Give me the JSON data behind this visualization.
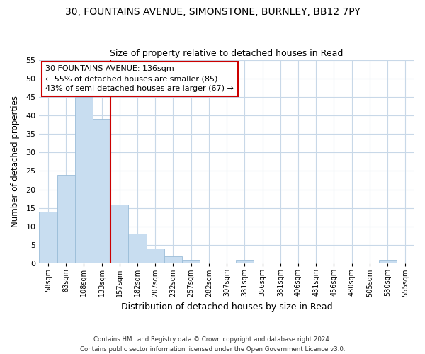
{
  "title1": "30, FOUNTAINS AVENUE, SIMONSTONE, BURNLEY, BB12 7PY",
  "title2": "Size of property relative to detached houses in Read",
  "xlabel": "Distribution of detached houses by size in Read",
  "ylabel": "Number of detached properties",
  "bin_labels": [
    "58sqm",
    "83sqm",
    "108sqm",
    "133sqm",
    "157sqm",
    "182sqm",
    "207sqm",
    "232sqm",
    "257sqm",
    "282sqm",
    "307sqm",
    "331sqm",
    "356sqm",
    "381sqm",
    "406sqm",
    "431sqm",
    "456sqm",
    "480sqm",
    "505sqm",
    "530sqm",
    "555sqm"
  ],
  "bar_values": [
    14,
    24,
    45,
    39,
    16,
    8,
    4,
    2,
    1,
    0,
    0,
    1,
    0,
    0,
    0,
    0,
    0,
    0,
    0,
    1,
    0
  ],
  "bar_color": "#c8ddf0",
  "bar_edge_color": "#9bbdd8",
  "vline_color": "#cc0000",
  "vline_x": 4.0,
  "ylim": [
    0,
    55
  ],
  "yticks": [
    0,
    5,
    10,
    15,
    20,
    25,
    30,
    35,
    40,
    45,
    50,
    55
  ],
  "annotation_title": "30 FOUNTAINS AVENUE: 136sqm",
  "annotation_line1": "← 55% of detached houses are smaller (85)",
  "annotation_line2": "43% of semi-detached houses are larger (67) →",
  "annotation_box_color": "#ffffff",
  "annotation_box_edge": "#cc0000",
  "footnote1": "Contains HM Land Registry data © Crown copyright and database right 2024.",
  "footnote2": "Contains public sector information licensed under the Open Government Licence v3.0.",
  "bg_color": "#ffffff",
  "grid_color": "#c8d8e8"
}
